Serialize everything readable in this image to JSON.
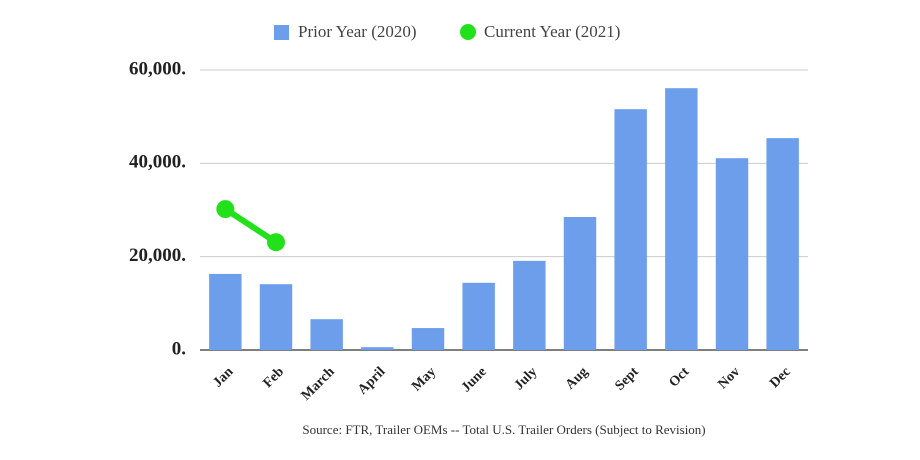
{
  "chart_data": {
    "type": "bar",
    "categories": [
      "Jan",
      "Feb",
      "March",
      "April",
      "May",
      "June",
      "July",
      "Aug",
      "Sept",
      "Oct",
      "Nov",
      "Dec"
    ],
    "series": [
      {
        "name": "Prior Year (2020)",
        "type": "bar",
        "color": "#6d9eeb",
        "values": [
          16300,
          14100,
          6600,
          600,
          4700,
          14400,
          19100,
          28500,
          51600,
          56100,
          41100,
          45400
        ]
      },
      {
        "name": "Current Year (2021)",
        "type": "line",
        "color": "#22e01a",
        "values": [
          30200,
          23100,
          null,
          null,
          null,
          null,
          null,
          null,
          null,
          null,
          null,
          null
        ]
      }
    ],
    "ylim": [
      0,
      60000
    ],
    "yticks": [
      {
        "value": 0,
        "label": "0."
      },
      {
        "value": 20000,
        "label": "20,000."
      },
      {
        "value": 40000,
        "label": "40,000."
      },
      {
        "value": 60000,
        "label": "60,000."
      }
    ],
    "grid": true,
    "legend": "top",
    "source": "Source: FTR, Trailer OEMs -- Total U.S. Trailer Orders (Subject to Revision)"
  }
}
